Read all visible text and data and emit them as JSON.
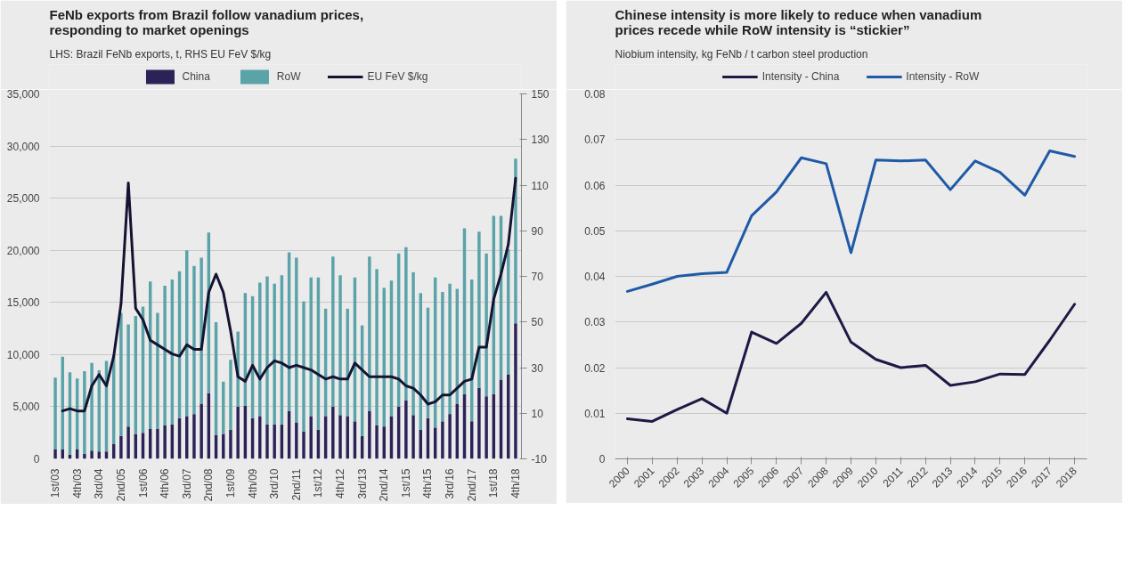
{
  "chart_data": [
    {
      "type": "bar",
      "title": "FeNb exports from Brazil follow vanadium prices, responding to market openings",
      "subtitle": "LHS: Brazil FeNb exports, t, RHS EU FeV $/kg",
      "stacked": true,
      "categories": [
        "1st/03",
        null,
        null,
        "4th/03",
        null,
        null,
        "3rd/04",
        null,
        null,
        "2nd/05",
        null,
        null,
        "1st/06",
        null,
        null,
        "4th/06",
        null,
        null,
        "3rd/07",
        null,
        null,
        "2nd/08",
        null,
        null,
        "1st/09",
        null,
        null,
        "4th/09",
        null,
        null,
        "3rd/10",
        null,
        null,
        "2nd/11",
        null,
        null,
        "1st/12",
        null,
        null,
        "4th/12",
        null,
        null,
        "3rd/13",
        null,
        null,
        "2nd/14",
        null,
        null,
        "1st/15",
        null,
        null,
        "4th/15",
        null,
        null,
        "3rd/16",
        null,
        null,
        "2nd/17",
        null,
        null,
        "1st/18",
        null,
        null,
        "4th/18"
      ],
      "series": [
        {
          "name": "China",
          "color": "#2b2358",
          "values": [
            900,
            900,
            400,
            900,
            500,
            800,
            700,
            700,
            1400,
            2200,
            3100,
            2400,
            2500,
            2900,
            2900,
            3200,
            3300,
            3900,
            4100,
            4300,
            5300,
            6300,
            2300,
            2400,
            2800,
            5000,
            5100,
            3900,
            4100,
            3300,
            3300,
            3300,
            4600,
            3500,
            2600,
            4100,
            2800,
            4100,
            5000,
            4200,
            4100,
            3600,
            2200,
            4600,
            3200,
            3100,
            4100,
            5000,
            5600,
            4200,
            2800,
            3900,
            3000,
            3600,
            4300,
            5300,
            6200,
            3600,
            6800,
            6000,
            6200,
            7600,
            8100,
            13000
          ]
        },
        {
          "name": "RoW",
          "color": "#5aa3a8",
          "values": [
            6900,
            8900,
            7900,
            6800,
            7900,
            8400,
            7800,
            8700,
            8500,
            11800,
            9800,
            11300,
            12100,
            14100,
            11100,
            13400,
            13900,
            14100,
            15900,
            14200,
            14000,
            15400,
            10800,
            5000,
            6700,
            7200,
            10800,
            11700,
            12800,
            14200,
            13500,
            14300,
            15200,
            15800,
            12500,
            13300,
            14600,
            10300,
            14400,
            13400,
            10300,
            13800,
            10600,
            14800,
            15000,
            13300,
            13000,
            14700,
            14700,
            13700,
            13100,
            10600,
            14400,
            12400,
            12500,
            11000,
            15900,
            13600,
            15000,
            13700,
            17100,
            15700,
            12000,
            15800
          ]
        },
        {
          "name": "EU FeV $/kg",
          "type": "line",
          "axis": "y2",
          "color": "#141432",
          "values": [
            null,
            11,
            12,
            11,
            11,
            22,
            27,
            22,
            35,
            58,
            111,
            56,
            51,
            42,
            40,
            38,
            36,
            35,
            40,
            38,
            38,
            63,
            71,
            63,
            46,
            26,
            24,
            31,
            25,
            30,
            33,
            32,
            30,
            31,
            30,
            29,
            27,
            25,
            26,
            25,
            25,
            32,
            29,
            26,
            26,
            26,
            26,
            25,
            22,
            21,
            18,
            14,
            15,
            18,
            18,
            21,
            24,
            25,
            39,
            39,
            60,
            71,
            84,
            113
          ]
        }
      ],
      "ylim": [
        0,
        35000
      ],
      "yticks": [
        0,
        {
          "value": 5000,
          "label": "5,000"
        },
        {
          "value": 10000,
          "label": "10,000"
        },
        {
          "value": 15000,
          "label": "15,000"
        },
        {
          "value": 20000,
          "label": "20,000"
        },
        {
          "value": 25000,
          "label": "25,000"
        },
        {
          "value": 30000,
          "label": "30,000"
        },
        {
          "value": 35000,
          "label": "35,000"
        }
      ],
      "y2lim": [
        -10,
        150
      ],
      "y2ticks": [
        -10,
        10,
        30,
        50,
        70,
        90,
        110,
        130,
        150
      ],
      "grid": "y",
      "legend": "top"
    },
    {
      "type": "line",
      "title": "Chinese intensity is more likely to reduce when vanadium prices recede while RoW intensity is “stickier”",
      "subtitle": "Niobium intensity, kg FeNb / t carbon steel production",
      "x": [
        2000,
        2001,
        2002,
        2003,
        2004,
        2005,
        2006,
        2007,
        2008,
        2009,
        2010,
        2011,
        2012,
        2013,
        2014,
        2015,
        2016,
        2017,
        2018
      ],
      "series": [
        {
          "name": "Intensity - China",
          "color": "#1c1a45",
          "values": [
            0.0088,
            0.0082,
            0.0108,
            0.0132,
            0.01,
            0.0278,
            0.0253,
            0.0297,
            0.0365,
            0.0256,
            0.0218,
            0.02,
            0.0205,
            0.0161,
            0.0169,
            0.0186,
            0.0185,
            0.026,
            0.0339
          ]
        },
        {
          "name": "Intensity - RoW",
          "color": "#1f5aa6",
          "values": [
            0.0367,
            0.0383,
            0.04,
            0.0406,
            0.0409,
            0.0533,
            0.0585,
            0.066,
            0.0647,
            0.0452,
            0.0655,
            0.0653,
            0.0655,
            0.059,
            0.0653,
            0.0628,
            0.0578,
            0.0675,
            0.0663
          ]
        }
      ],
      "xlim": [
        1999.5,
        2018.5
      ],
      "xticks": [
        2000,
        2001,
        2002,
        2003,
        2004,
        2005,
        2006,
        2007,
        2008,
        2009,
        2010,
        2011,
        2012,
        2013,
        2014,
        2015,
        2016,
        2017,
        2018
      ],
      "ylim": [
        0,
        0.08
      ],
      "yticks": [
        0,
        0.01,
        0.02,
        0.03,
        0.04,
        0.05,
        0.06,
        0.07,
        0.08
      ],
      "grid": "y",
      "legend": "top"
    }
  ]
}
